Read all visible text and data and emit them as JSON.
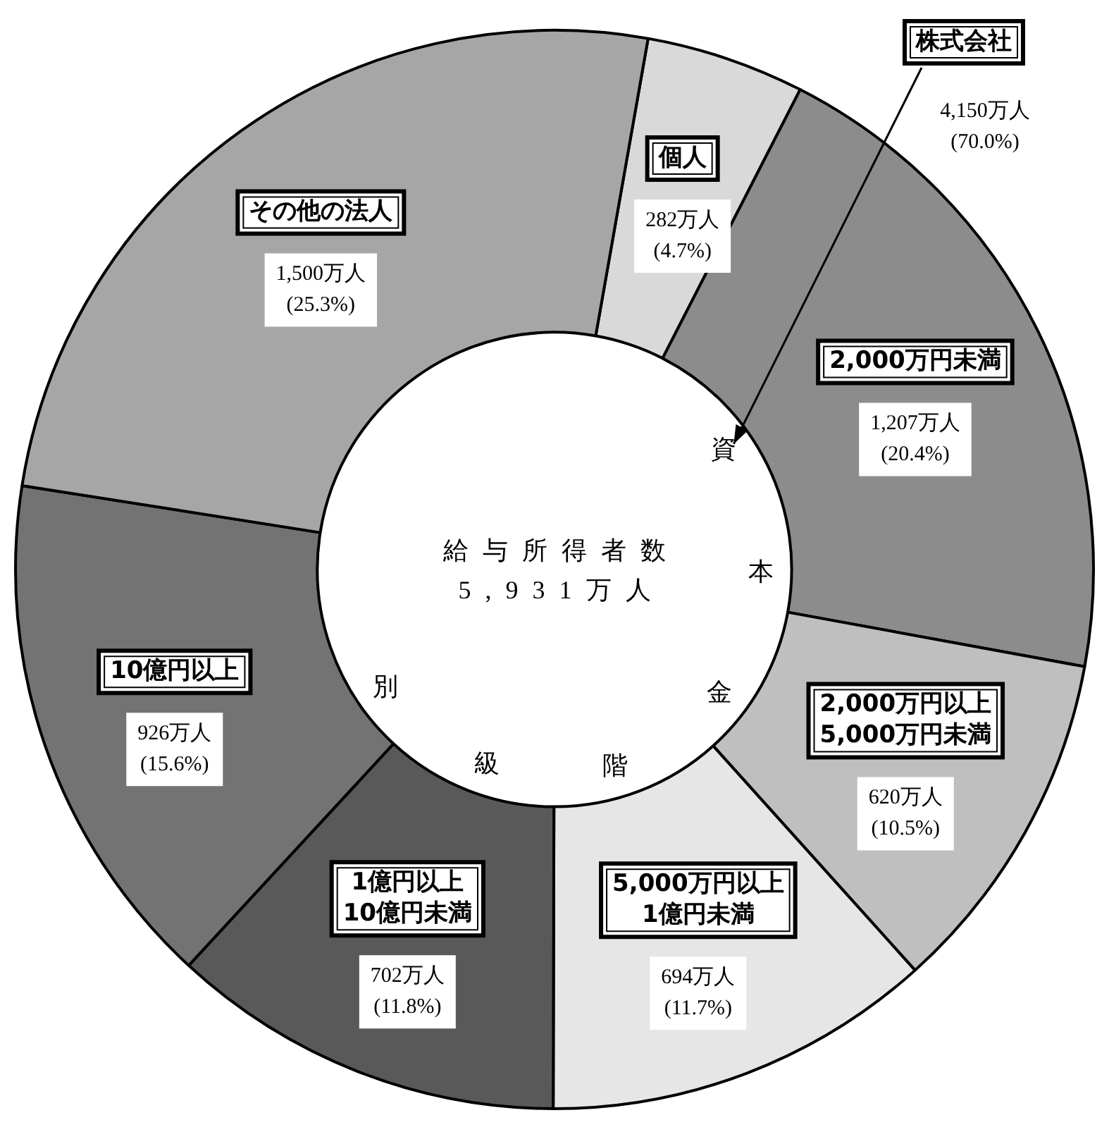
{
  "chart_data": {
    "type": "donut",
    "categories": [
      "個人",
      "2,000万円未満",
      "2,000万円以上\n5,000万円未満",
      "5,000万円以上\n1億円未満",
      "1億円以上\n10億円未満",
      "10億円以上",
      "その他の法人"
    ],
    "values": [
      282,
      1207,
      620,
      694,
      702,
      926,
      1500
    ],
    "colors": [
      "#d9d9d9",
      "#8c8c8c",
      "#bfbfbf",
      "#e6e6e6",
      "#595959",
      "#737373",
      "#a6a6a6"
    ],
    "value_labels": [
      "282万人\n(4.7%)",
      "1,207万人\n(20.4%)",
      "620万人\n(10.5%)",
      "694万人\n(11.7%)",
      "702万人\n(11.8%)",
      "926万人\n(15.6%)",
      "1,500万人\n(25.3%)"
    ],
    "annotations": [
      "株式会社",
      "4,150万人\n(70.0%)",
      "給与所得者数",
      "5,931万人",
      "資",
      "本",
      "金",
      "階",
      "級",
      "別"
    ]
  }
}
